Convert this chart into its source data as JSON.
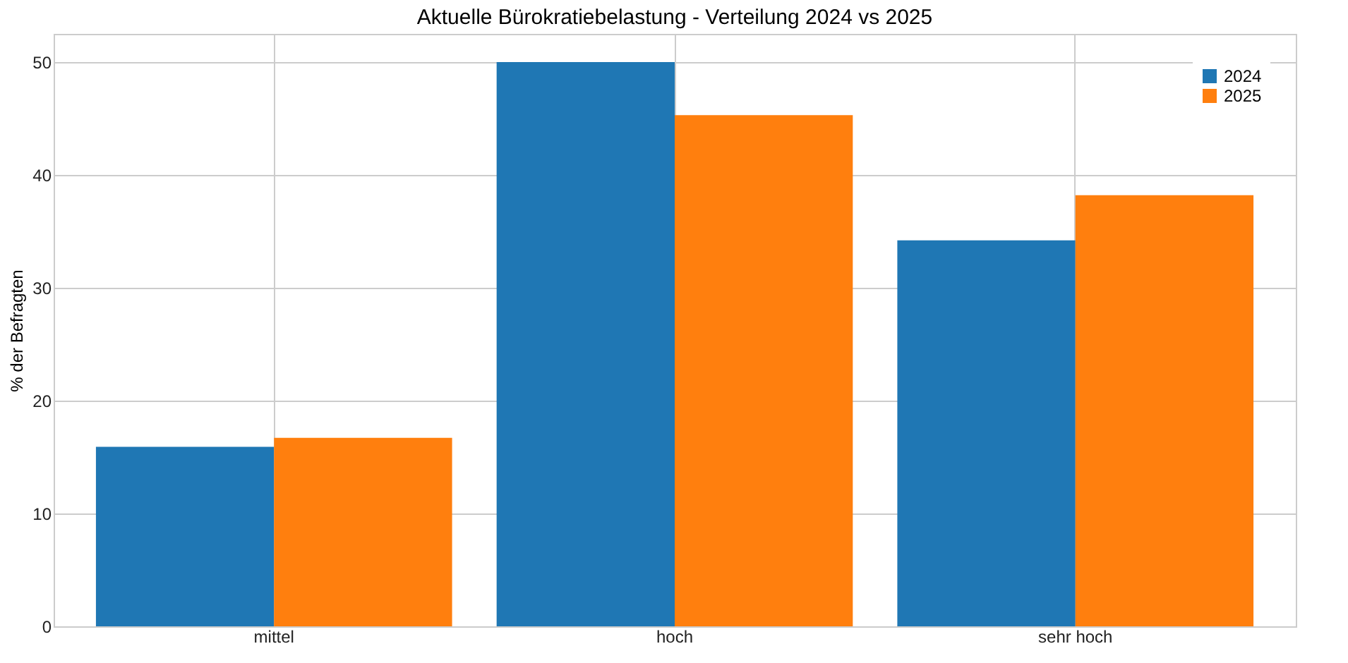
{
  "chart_data": {
    "type": "bar",
    "title": "Aktuelle Bürokratiebelastung - Verteilung 2024 vs 2025",
    "ylabel": "% der Befragten",
    "categories": [
      "mittel",
      "hoch",
      "sehr hoch"
    ],
    "series": [
      {
        "name": "2024",
        "color": "#1f77b4",
        "values": [
          15.9,
          50.0,
          34.2
        ]
      },
      {
        "name": "2025",
        "color": "#ff7f0e",
        "values": [
          16.7,
          45.3,
          38.2
        ]
      }
    ],
    "ylim": [
      0,
      52.5
    ],
    "yticks": [
      0,
      10,
      20,
      30,
      40,
      50
    ],
    "grid": true,
    "legend": "top right"
  }
}
